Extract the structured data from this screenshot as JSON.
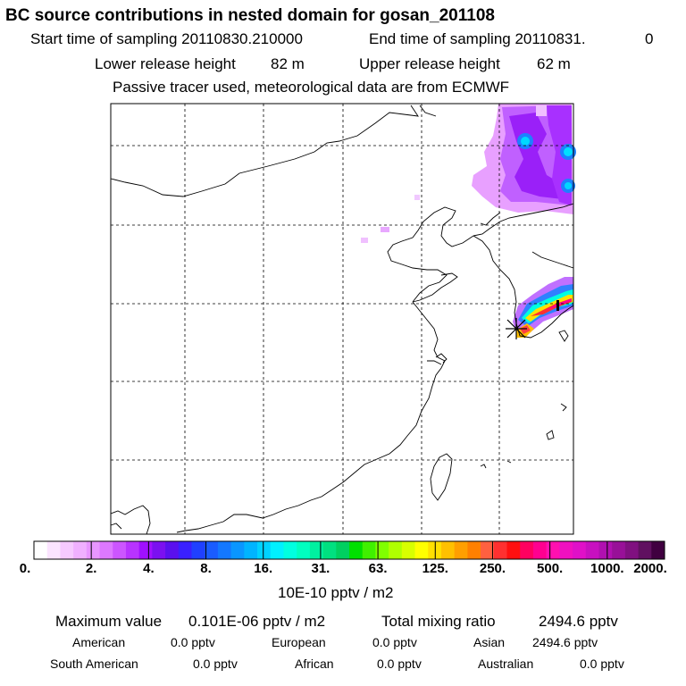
{
  "chart_data": {
    "type": "heatmap",
    "title": "BC  source contributions in nested domain for gosan_201108",
    "subtitle_lines": {
      "start_label": "Start time of sampling 20110830.210000",
      "end_label": "End time of sampling 20110831.",
      "end_value": "0",
      "lower_label": "Lower release height",
      "lower_value": "82 m",
      "upper_label": "Upper release height",
      "upper_value": "62 m",
      "tracer_note": "Passive tracer used, meteorological data are from ECMWF"
    },
    "units_label": "10E-10 pptv / m2",
    "colorbar": {
      "tick_labels": [
        "0.",
        "2.",
        "4.",
        "8.",
        "16.",
        "31.",
        "63.",
        "125.",
        "250.",
        "500.",
        "1000.",
        "2000."
      ],
      "colors": [
        "#ffffff",
        "#fbe4ff",
        "#f6c9ff",
        "#f0b0ff",
        "#e896ff",
        "#dd78ff",
        "#cc55ff",
        "#b833ff",
        "#a010ff",
        "#7b10f0",
        "#5a10ee",
        "#3a20ff",
        "#2040ff",
        "#1a5cff",
        "#1478ff",
        "#0a96ff",
        "#00b4ff",
        "#00d2ff",
        "#00f0ff",
        "#00ffe0",
        "#00ffc0",
        "#00f0a0",
        "#00e080",
        "#00d060",
        "#00e000",
        "#40f000",
        "#80ff00",
        "#b0ff00",
        "#d8ff00",
        "#ffff00",
        "#ffe000",
        "#ffc000",
        "#ff9f00",
        "#ff8000",
        "#ff6040",
        "#ff3030",
        "#ff1010",
        "#ff0060",
        "#ff0090",
        "#ff10b0",
        "#f010c0",
        "#e010c8",
        "#c810c0",
        "#b010b0",
        "#981098",
        "#801080",
        "#601060",
        "#400040"
      ]
    },
    "grid": true,
    "station": "gosan"
  },
  "stats": {
    "max_label": "Maximum value",
    "max_value": "0.101E-06 pptv / m2",
    "total_label": "Total mixing ratio",
    "total_value": "2494.6 pptv",
    "regions": [
      {
        "name": "American",
        "value": "0.0 pptv"
      },
      {
        "name": "European",
        "value": "0.0 pptv"
      },
      {
        "name": "Asian",
        "value": "2494.6 pptv"
      },
      {
        "name": "South American",
        "value": "0.0 pptv"
      },
      {
        "name": "African",
        "value": "0.0 pptv"
      },
      {
        "name": "Australian",
        "value": "0.0 pptv"
      }
    ]
  }
}
